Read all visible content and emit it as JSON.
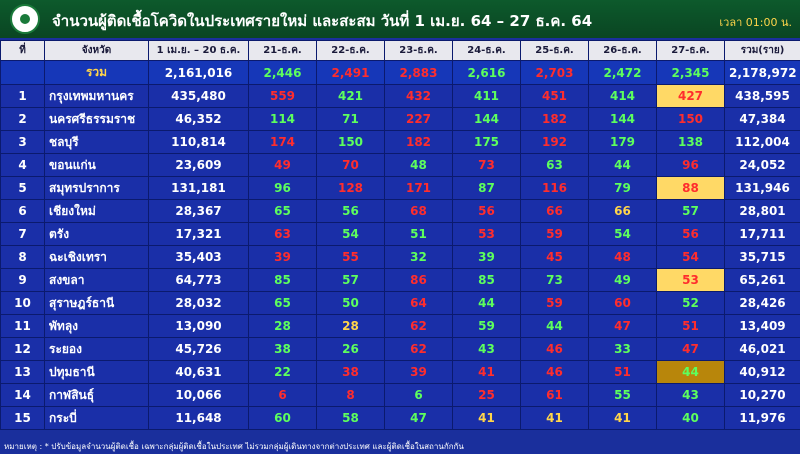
{
  "header": {
    "title": "จำนวนผู้ติดเชื้อโควิดในประเทศรายใหม่ และสะสม วันที่ 1 เม.ย. 64 – 27 ธ.ค. 64",
    "time": "เวลา 01:00 น."
  },
  "table": {
    "columns": [
      "ที่",
      "จังหวัด",
      "1 เม.ย. – 20 ธ.ค.",
      "21-ธ.ค.",
      "22-ธ.ค.",
      "23-ธ.ค.",
      "24-ธ.ค.",
      "25-ธ.ค.",
      "26-ธ.ค.",
      "27-ธ.ค.",
      "รวม(ราย)"
    ],
    "colors": {
      "green": "#5dff5d",
      "red": "#ff2d2d",
      "yellow": "#ffd54a",
      "highlight": "#ffd966",
      "dark_highlight": "#b8860b"
    },
    "summary": {
      "label": "รวม",
      "base": "2,161,016",
      "daily": [
        "2,446",
        "2,491",
        "2,883",
        "2,616",
        "2,703",
        "2,472",
        "2,345"
      ],
      "daily_colors": [
        "green",
        "red",
        "red",
        "green",
        "red",
        "green",
        "green"
      ],
      "total": "2,178,972"
    },
    "rows": [
      {
        "rank": "1",
        "province": "กรุงเทพมหานคร",
        "base": "435,480",
        "daily": [
          "559",
          "421",
          "432",
          "411",
          "451",
          "414",
          "427"
        ],
        "daily_colors": [
          "red",
          "green",
          "red",
          "green",
          "red",
          "green",
          "red"
        ],
        "highlight": "highlight",
        "total": "438,595"
      },
      {
        "rank": "2",
        "province": "นครศรีธรรมราช",
        "base": "46,352",
        "daily": [
          "114",
          "71",
          "227",
          "144",
          "182",
          "144",
          "150"
        ],
        "daily_colors": [
          "green",
          "green",
          "red",
          "green",
          "red",
          "green",
          "red"
        ],
        "total": "47,384"
      },
      {
        "rank": "3",
        "province": "ชลบุรี",
        "base": "110,814",
        "daily": [
          "174",
          "150",
          "182",
          "175",
          "192",
          "179",
          "138"
        ],
        "daily_colors": [
          "red",
          "green",
          "red",
          "green",
          "red",
          "green",
          "green"
        ],
        "total": "112,004"
      },
      {
        "rank": "4",
        "province": "ขอนแก่น",
        "base": "23,609",
        "daily": [
          "49",
          "70",
          "48",
          "73",
          "63",
          "44",
          "96"
        ],
        "daily_colors": [
          "red",
          "red",
          "green",
          "red",
          "green",
          "green",
          "red"
        ],
        "total": "24,052"
      },
      {
        "rank": "5",
        "province": "สมุทรปราการ",
        "base": "131,181",
        "daily": [
          "96",
          "128",
          "171",
          "87",
          "116",
          "79",
          "88"
        ],
        "daily_colors": [
          "green",
          "red",
          "red",
          "green",
          "red",
          "green",
          "red"
        ],
        "highlight": "highlight",
        "total": "131,946"
      },
      {
        "rank": "6",
        "province": "เชียงใหม่",
        "base": "28,367",
        "daily": [
          "65",
          "56",
          "68",
          "56",
          "66",
          "66",
          "57"
        ],
        "daily_colors": [
          "green",
          "green",
          "red",
          "red",
          "red",
          "yellow",
          "green"
        ],
        "total": "28,801"
      },
      {
        "rank": "7",
        "province": "ตรัง",
        "base": "17,321",
        "daily": [
          "63",
          "54",
          "51",
          "53",
          "59",
          "54",
          "56"
        ],
        "daily_colors": [
          "red",
          "green",
          "green",
          "red",
          "red",
          "green",
          "red"
        ],
        "total": "17,711"
      },
      {
        "rank": "8",
        "province": "ฉะเชิงเทรา",
        "base": "35,403",
        "daily": [
          "39",
          "55",
          "32",
          "39",
          "45",
          "48",
          "54"
        ],
        "daily_colors": [
          "red",
          "red",
          "green",
          "green",
          "red",
          "red",
          "red"
        ],
        "total": "35,715"
      },
      {
        "rank": "9",
        "province": "สงขลา",
        "base": "64,773",
        "daily": [
          "85",
          "57",
          "86",
          "85",
          "73",
          "49",
          "53"
        ],
        "daily_colors": [
          "green",
          "green",
          "red",
          "green",
          "green",
          "green",
          "red"
        ],
        "highlight": "highlight",
        "total": "65,261"
      },
      {
        "rank": "10",
        "province": "สุราษฎร์ธานี",
        "base": "28,032",
        "daily": [
          "65",
          "50",
          "64",
          "44",
          "59",
          "60",
          "52"
        ],
        "daily_colors": [
          "green",
          "green",
          "red",
          "green",
          "red",
          "red",
          "green"
        ],
        "total": "28,426"
      },
      {
        "rank": "11",
        "province": "พัทลุง",
        "base": "13,090",
        "daily": [
          "28",
          "28",
          "62",
          "59",
          "44",
          "47",
          "51"
        ],
        "daily_colors": [
          "green",
          "yellow",
          "red",
          "green",
          "green",
          "red",
          "red"
        ],
        "total": "13,409"
      },
      {
        "rank": "12",
        "province": "ระยอง",
        "base": "45,726",
        "daily": [
          "38",
          "26",
          "62",
          "43",
          "46",
          "33",
          "47"
        ],
        "daily_colors": [
          "green",
          "green",
          "red",
          "green",
          "red",
          "green",
          "red"
        ],
        "total": "46,021"
      },
      {
        "rank": "13",
        "province": "ปทุมธานี",
        "base": "40,631",
        "daily": [
          "22",
          "38",
          "39",
          "41",
          "46",
          "51",
          "44"
        ],
        "daily_colors": [
          "green",
          "red",
          "red",
          "red",
          "red",
          "red",
          "green"
        ],
        "highlight": "dark_highlight",
        "total": "40,912"
      },
      {
        "rank": "14",
        "province": "กาฬสินธุ์",
        "base": "10,066",
        "daily": [
          "6",
          "8",
          "6",
          "25",
          "61",
          "55",
          "43"
        ],
        "daily_colors": [
          "red",
          "red",
          "green",
          "red",
          "red",
          "green",
          "green"
        ],
        "total": "10,270"
      },
      {
        "rank": "15",
        "province": "กระบี่",
        "base": "11,648",
        "daily": [
          "60",
          "58",
          "47",
          "41",
          "41",
          "41",
          "40"
        ],
        "daily_colors": [
          "green",
          "green",
          "green",
          "yellow",
          "yellow",
          "yellow",
          "green"
        ],
        "total": "11,976"
      }
    ]
  },
  "footnote": "หมายเหตุ : * ปรับข้อมูลจำนวนผู้ติดเชื้อ เฉพาะกลุ่มผู้ติดเชื้อในประเทศ ไม่รวมกลุ่มผู้เดินทางจากต่างประเทศ และผู้ติดเชื้อในสถานกักกัน"
}
